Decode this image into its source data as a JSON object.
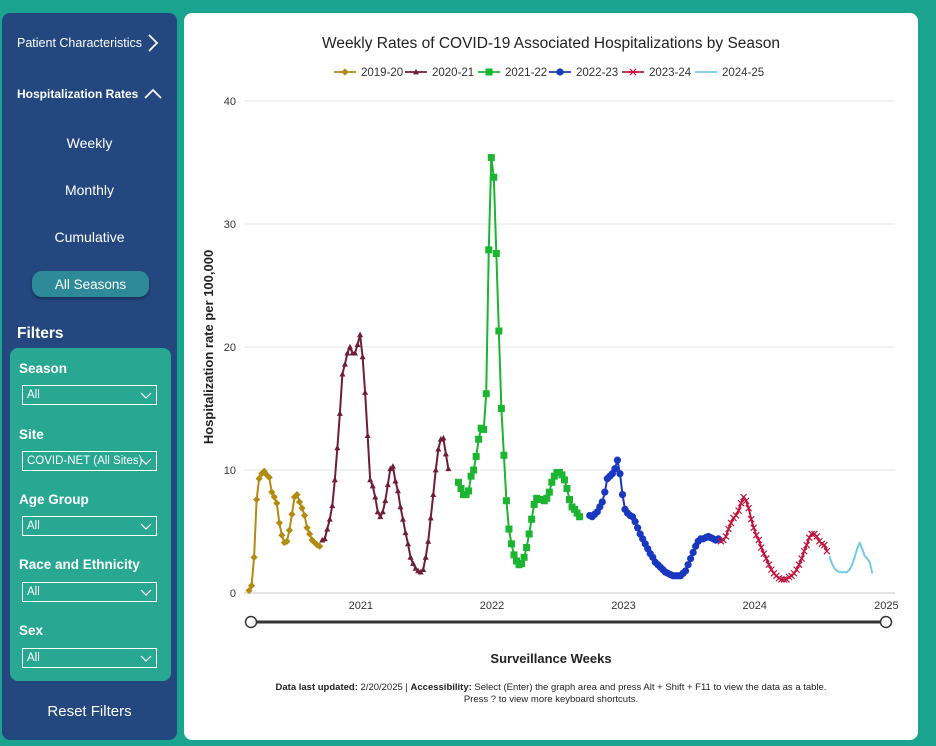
{
  "sidebar": {
    "patient_characteristics": "Patient Characteristics",
    "hospitalization_rates": "Hospitalization Rates",
    "sub_items": [
      "Weekly",
      "Monthly",
      "Cumulative"
    ],
    "all_seasons": "All Seasons",
    "filters_title": "Filters",
    "filters": [
      {
        "label": "Season",
        "value": "All"
      },
      {
        "label": "Site",
        "value": "COVID-NET (All Sites)"
      },
      {
        "label": "Age Group",
        "value": "All"
      },
      {
        "label": "Race and Ethnicity",
        "value": "All"
      },
      {
        "label": "Sex",
        "value": "All"
      }
    ],
    "reset_filters": "Reset Filters"
  },
  "footnote": {
    "updated_label": "Data last updated:",
    "updated_value": "2/20/2025",
    "separator": "|",
    "accessibility_label": "Accessibility:",
    "accessibility_text": "Select (Enter) the graph area and press Alt + Shift + F11 to view the data as a table.",
    "shortcuts_text": "Press ? to view more keyboard shortcuts."
  },
  "chart_data": {
    "type": "line",
    "title": "Weekly Rates of COVID-19 Associated Hospitalizations by Season",
    "xlabel": "Surveillance Weeks",
    "ylabel": "Hospitalization rate per 100,000",
    "ylim": [
      0,
      40
    ],
    "yticks": [
      0,
      10,
      20,
      30,
      40
    ],
    "xticks": [
      {
        "label": "2021",
        "week": 44.3
      },
      {
        "label": "2022",
        "week": 96.3
      },
      {
        "label": "2023",
        "week": 148.4
      },
      {
        "label": "2024",
        "week": 200.4
      },
      {
        "label": "2025",
        "week": 252.6
      }
    ],
    "xlim": [
      -2,
      256
    ],
    "grid": true,
    "legend_position": "top",
    "series": [
      {
        "name": "2019-20",
        "color": "#b38b10",
        "marker": "diamond",
        "start": 0,
        "values": [
          0.2,
          0.6,
          2.9,
          7.6,
          9.3,
          9.7,
          9.9,
          9.6,
          9.4,
          8.2,
          7.8,
          7.3,
          5.7,
          4.7,
          4.1,
          4.2,
          5.1,
          6.4,
          7.8,
          8.0,
          7.4,
          6.9,
          6.3,
          5.3,
          4.8,
          4.3,
          4.1,
          3.9,
          3.8
        ]
      },
      {
        "name": "2020-21",
        "color": "#6e1f37",
        "marker": "triangle",
        "start": 29,
        "values": [
          4.3,
          4.4,
          5.2,
          6.0,
          7.1,
          9.2,
          11.8,
          14.6,
          17.8,
          18.6,
          19.5,
          20.0,
          19.5,
          19.5,
          20.2,
          21.0,
          19.2,
          16.3,
          12.8,
          9.2,
          8.7,
          7.8,
          6.6,
          6.2,
          6.6,
          7.5,
          8.8,
          10.1,
          10.3,
          9.1,
          8.3,
          7.0,
          6.0,
          4.9,
          4.0,
          2.9,
          2.4,
          2.0,
          1.8,
          1.7,
          1.9,
          2.9,
          4.2,
          6.1,
          8.0,
          10.0,
          11.7,
          12.5,
          12.6,
          11.3,
          10.1
        ]
      },
      {
        "name": "2021-22",
        "color": "#1bb532",
        "marker": "square",
        "start": 83,
        "values": [
          9.0,
          8.5,
          8.0,
          8.0,
          8.3,
          9.5,
          10.0,
          11.1,
          12.5,
          13.4,
          13.3,
          16.2,
          27.9,
          35.4,
          33.8,
          27.6,
          21.3,
          15.0,
          11.2,
          7.5,
          5.2,
          4.0,
          3.1,
          2.6,
          2.3,
          2.4,
          2.9,
          3.7,
          4.8,
          6.0,
          7.2,
          7.7,
          7.6,
          7.6,
          7.5,
          7.7,
          8.2,
          9.0,
          9.5,
          9.8,
          9.8,
          9.6,
          9.2,
          8.5,
          7.6,
          7.0,
          6.8,
          6.5,
          6.2
        ]
      },
      {
        "name": "2022-23",
        "color": "#1937bf",
        "marker": "circle",
        "start": 135,
        "values": [
          6.3,
          6.2,
          6.4,
          6.6,
          7.0,
          7.4,
          8.2,
          9.3,
          9.5,
          9.7,
          10.1,
          10.8,
          9.7,
          8.0,
          6.8,
          6.5,
          6.3,
          6.2,
          5.8,
          5.3,
          4.8,
          4.4,
          4.0,
          3.6,
          3.2,
          2.9,
          2.5,
          2.3,
          2.1,
          1.9,
          1.7,
          1.6,
          1.5,
          1.4,
          1.4,
          1.4,
          1.4,
          1.6,
          1.8,
          2.3,
          2.8,
          3.3,
          3.8,
          4.2,
          4.4,
          4.4,
          4.5,
          4.6,
          4.5,
          4.4,
          4.3,
          4.4
        ]
      },
      {
        "name": "2023-24",
        "color": "#c0143c",
        "marker": "x",
        "start": 187,
        "values": [
          4.2,
          4.3,
          4.6,
          5.2,
          5.7,
          6.1,
          6.3,
          6.7,
          7.3,
          7.8,
          7.5,
          6.9,
          6.0,
          5.3,
          4.7,
          4.3,
          3.7,
          3.2,
          2.8,
          2.3,
          1.9,
          1.6,
          1.4,
          1.2,
          1.1,
          1.1,
          1.1,
          1.3,
          1.4,
          1.6,
          1.9,
          2.3,
          2.8,
          3.4,
          3.9,
          4.5,
          4.8,
          4.8,
          4.6,
          4.2,
          4.0,
          3.9,
          3.4
        ]
      },
      {
        "name": "2024-25",
        "color": "#74cbe6",
        "marker": "none",
        "start": 230,
        "values": [
          3.0,
          2.4,
          2.0,
          1.8,
          1.7,
          1.7,
          1.7,
          1.7,
          1.9,
          2.3,
          2.9,
          3.6,
          4.1,
          3.6,
          3.0,
          2.8,
          2.5,
          1.6
        ]
      }
    ]
  }
}
